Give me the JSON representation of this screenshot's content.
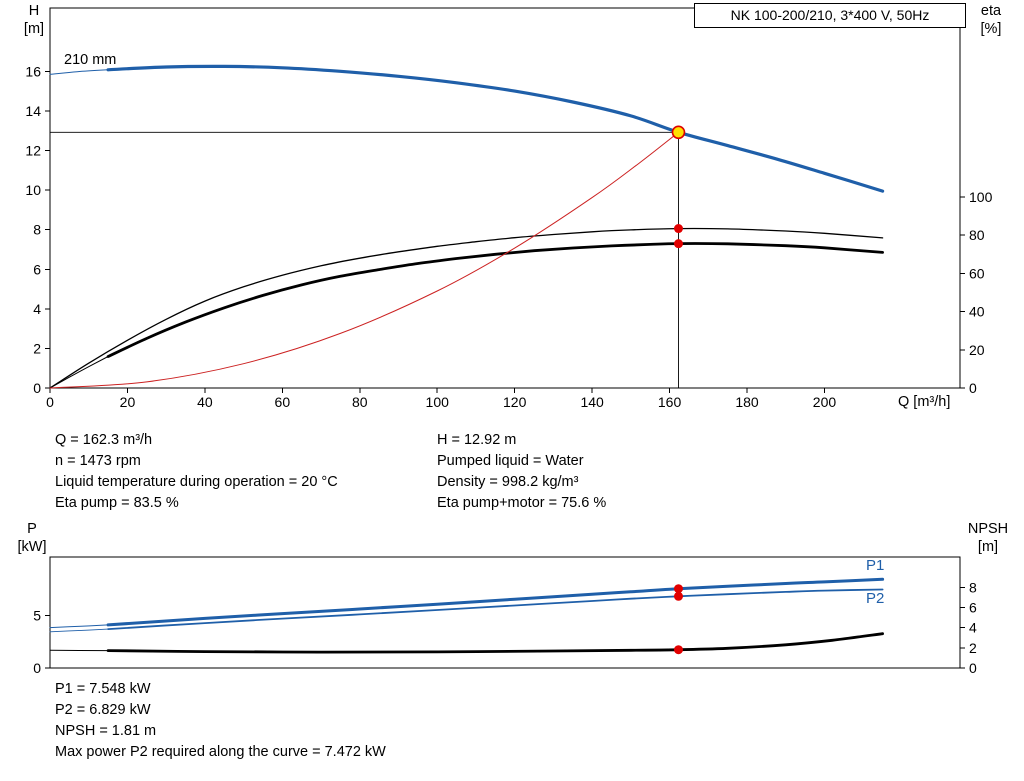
{
  "chart_data": [
    {
      "type": "line",
      "title": "NK 100-200/210, 3*400 V, 50Hz",
      "impeller_label": "210 mm",
      "x": {
        "label": "Q [m³/h]",
        "ticks": [
          0,
          20,
          40,
          60,
          80,
          100,
          120,
          140,
          160,
          180,
          200
        ],
        "range": [
          0,
          235
        ]
      },
      "y_left": {
        "label": "H",
        "unit": "[m]",
        "ticks": [
          0,
          2,
          4,
          6,
          8,
          10,
          12,
          14,
          16
        ],
        "range": [
          0,
          19.2
        ]
      },
      "y_right": {
        "label": "eta",
        "unit": "[%]",
        "ticks": [
          0,
          20,
          40,
          60,
          80,
          100
        ],
        "range": [
          0,
          199
        ]
      },
      "duty_point": {
        "q": 162.3,
        "h": 12.92,
        "eta_pump": 83.5,
        "eta_pump_motor": 75.6
      },
      "series": [
        {
          "name": "head-curve-lead",
          "axis": "left",
          "color": "#1f5fa9",
          "width": 1,
          "points": [
            [
              0,
              15.85
            ],
            [
              7,
              15.98
            ],
            [
              15,
              16.08
            ]
          ]
        },
        {
          "name": "head-curve-210mm",
          "axis": "left",
          "color": "#1f5fa9",
          "width": 3.2,
          "points": [
            [
              15,
              16.08
            ],
            [
              30,
              16.22
            ],
            [
              45,
              16.25
            ],
            [
              60,
              16.18
            ],
            [
              75,
              16.0
            ],
            [
              90,
              15.75
            ],
            [
              105,
              15.42
            ],
            [
              120,
              15.0
            ],
            [
              135,
              14.45
            ],
            [
              150,
              13.75
            ],
            [
              162.3,
              12.92
            ],
            [
              175,
              12.25
            ],
            [
              188,
              11.55
            ],
            [
              200,
              10.85
            ],
            [
              215,
              9.95
            ]
          ]
        },
        {
          "name": "eta-pump-curve",
          "axis": "right",
          "color": "#000000",
          "width": 1.3,
          "points": [
            [
              0,
              0
            ],
            [
              10,
              13
            ],
            [
              20,
              25
            ],
            [
              30,
              36
            ],
            [
              40,
              45.5
            ],
            [
              50,
              53
            ],
            [
              60,
              59
            ],
            [
              70,
              64
            ],
            [
              80,
              68
            ],
            [
              90,
              71.3
            ],
            [
              100,
              74.2
            ],
            [
              110,
              76.6
            ],
            [
              120,
              78.7
            ],
            [
              130,
              80.4
            ],
            [
              140,
              81.8
            ],
            [
              150,
              82.8
            ],
            [
              162.3,
              83.5
            ],
            [
              175,
              83.3
            ],
            [
              190,
              82.2
            ],
            [
              200,
              81
            ],
            [
              215,
              78.6
            ]
          ]
        },
        {
          "name": "eta-pump-motor-lead",
          "axis": "right",
          "color": "#000000",
          "width": 1,
          "points": [
            [
              0,
              0
            ],
            [
              8,
              9
            ],
            [
              15,
              16.5
            ]
          ]
        },
        {
          "name": "eta-pump-motor-curve",
          "axis": "right",
          "color": "#000000",
          "width": 2.8,
          "points": [
            [
              15,
              16.5
            ],
            [
              25,
              26
            ],
            [
              35,
              34.5
            ],
            [
              45,
              42
            ],
            [
              55,
              48.5
            ],
            [
              65,
              54
            ],
            [
              75,
              58.5
            ],
            [
              85,
              62
            ],
            [
              95,
              65.2
            ],
            [
              105,
              67.8
            ],
            [
              115,
              70
            ],
            [
              125,
              71.9
            ],
            [
              135,
              73.3
            ],
            [
              145,
              74.4
            ],
            [
              155,
              75.2
            ],
            [
              162.3,
              75.6
            ],
            [
              175,
              75.5
            ],
            [
              190,
              74.5
            ],
            [
              200,
              73.4
            ],
            [
              215,
              71
            ]
          ]
        },
        {
          "name": "system-curve",
          "axis": "left",
          "color": "#cc2222",
          "width": 1,
          "points": [
            [
              0,
              0
            ],
            [
              25,
              0.31
            ],
            [
              50,
              1.23
            ],
            [
              75,
              2.76
            ],
            [
              100,
              4.9
            ],
            [
              120,
              7.07
            ],
            [
              140,
              9.62
            ],
            [
              152,
              11.34
            ],
            [
              162.3,
              12.92
            ]
          ]
        }
      ],
      "guides": [
        {
          "type": "h",
          "axis": "left",
          "y": 12.92,
          "from": 0,
          "to": 162.3
        },
        {
          "type": "v",
          "axis": "left",
          "x": 162.3,
          "fromY": 0,
          "toY": 12.92
        }
      ],
      "markers": [
        {
          "name": "duty-point",
          "axis": "left",
          "x": 162.3,
          "y": 12.92,
          "r": 6,
          "fill": "#ffe000",
          "stroke": "#dd0000"
        },
        {
          "name": "eta-pump-point",
          "axis": "right",
          "x": 162.3,
          "y": 83.5,
          "r": 4.5,
          "fill": "#e10000"
        },
        {
          "name": "eta-pump-motor-point",
          "axis": "right",
          "x": 162.3,
          "y": 75.6,
          "r": 4.5,
          "fill": "#e10000"
        }
      ]
    },
    {
      "type": "line",
      "title": "",
      "x": {
        "label": "",
        "ticks": [],
        "range": [
          0,
          235
        ]
      },
      "y_left": {
        "label": "P",
        "unit": "[kW]",
        "ticks": [
          0,
          5
        ],
        "range": [
          0,
          10.57
        ]
      },
      "y_right": {
        "label": "NPSH",
        "unit": "[m]",
        "ticks": [
          0,
          2,
          4,
          6,
          8
        ],
        "range": [
          0,
          11
        ]
      },
      "series_labels": {
        "p1": "P1",
        "p2": "P2"
      },
      "duty_point": {
        "q": 162.3,
        "p1": 7.548,
        "p2": 6.829,
        "npsh": 1.81
      },
      "series": [
        {
          "name": "p1-curve-lead",
          "axis": "left",
          "color": "#1f5fa9",
          "width": 1,
          "points": [
            [
              0,
              3.85
            ],
            [
              8,
              3.98
            ],
            [
              15,
              4.1
            ]
          ]
        },
        {
          "name": "p1-curve",
          "axis": "left",
          "color": "#1f5fa9",
          "width": 3,
          "points": [
            [
              15,
              4.1
            ],
            [
              40,
              4.72
            ],
            [
              60,
              5.18
            ],
            [
              80,
              5.62
            ],
            [
              100,
              6.08
            ],
            [
              120,
              6.55
            ],
            [
              140,
              7.02
            ],
            [
              150,
              7.26
            ],
            [
              162.3,
              7.548
            ],
            [
              175,
              7.78
            ],
            [
              190,
              8.05
            ],
            [
              200,
              8.2
            ],
            [
              215,
              8.45
            ]
          ]
        },
        {
          "name": "p2-curve-lead",
          "axis": "left",
          "color": "#1f5fa9",
          "width": 0.9,
          "points": [
            [
              0,
              3.45
            ],
            [
              8,
              3.58
            ],
            [
              15,
              3.7
            ]
          ]
        },
        {
          "name": "p2-curve",
          "axis": "left",
          "color": "#1f5fa9",
          "width": 1.8,
          "points": [
            [
              15,
              3.7
            ],
            [
              40,
              4.28
            ],
            [
              60,
              4.7
            ],
            [
              80,
              5.1
            ],
            [
              100,
              5.52
            ],
            [
              120,
              5.95
            ],
            [
              140,
              6.38
            ],
            [
              150,
              6.6
            ],
            [
              162.3,
              6.829
            ],
            [
              175,
              7.03
            ],
            [
              190,
              7.25
            ],
            [
              200,
              7.37
            ],
            [
              215,
              7.472
            ]
          ]
        },
        {
          "name": "npsh-curve-lead",
          "axis": "right",
          "color": "#000000",
          "width": 1,
          "points": [
            [
              0,
              1.76
            ],
            [
              15,
              1.72
            ]
          ]
        },
        {
          "name": "npsh-curve",
          "axis": "right",
          "color": "#000000",
          "width": 2.8,
          "points": [
            [
              15,
              1.72
            ],
            [
              40,
              1.63
            ],
            [
              70,
              1.58
            ],
            [
              100,
              1.6
            ],
            [
              130,
              1.68
            ],
            [
              150,
              1.75
            ],
            [
              162.3,
              1.81
            ],
            [
              175,
              1.95
            ],
            [
              190,
              2.3
            ],
            [
              202,
              2.75
            ],
            [
              215,
              3.4
            ]
          ]
        }
      ],
      "guides": [],
      "markers": [
        {
          "name": "p1-point",
          "axis": "left",
          "x": 162.3,
          "y": 7.548,
          "r": 4.5,
          "fill": "#e10000"
        },
        {
          "name": "p2-point",
          "axis": "left",
          "x": 162.3,
          "y": 6.829,
          "r": 4.5,
          "fill": "#e10000"
        },
        {
          "name": "npsh-point",
          "axis": "right",
          "x": 162.3,
          "y": 1.81,
          "r": 4.5,
          "fill": "#e10000"
        }
      ]
    }
  ],
  "info_top": {
    "left": [
      "Q = 162.3 m³/h",
      "n = 1473 rpm",
      "Liquid temperature during operation = 20 °C",
      "Eta pump = 83.5 %"
    ],
    "right": [
      "H = 12.92 m",
      "Pumped liquid = Water",
      "Density = 998.2 kg/m³",
      "Eta pump+motor = 75.6 %"
    ]
  },
  "info_bottom": {
    "lines": [
      "P1 = 7.548 kW",
      "P2 = 6.829 kW",
      "NPSH = 1.81 m",
      "Max power P2 required along the curve = 7.472 kW"
    ]
  }
}
